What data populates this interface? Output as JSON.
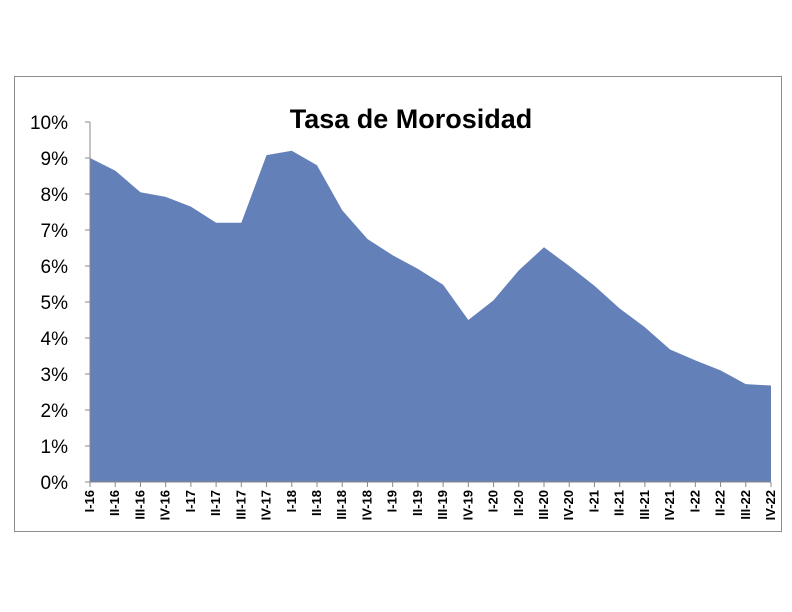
{
  "chart_data": {
    "type": "area",
    "title": "Tasa de Morosidad",
    "xlabel": "",
    "ylabel": "",
    "ylim": [
      0,
      10
    ],
    "y_tick_labels": [
      "0%",
      "1%",
      "2%",
      "3%",
      "4%",
      "5%",
      "6%",
      "7%",
      "8%",
      "9%",
      "10%"
    ],
    "categories": [
      "I-16",
      "II-16",
      "III-16",
      "IV-16",
      "I-17",
      "II-17",
      "III-17",
      "IV-17",
      "I-18",
      "II-18",
      "III-18",
      "IV-18",
      "I-19",
      "II-19",
      "III-19",
      "IV-19",
      "I-20",
      "II-20",
      "III-20",
      "IV-20",
      "I-21",
      "II-21",
      "III-21",
      "IV-21",
      "I-22",
      "II-22",
      "III-22",
      "IV-22"
    ],
    "series": [
      {
        "values": [
          9.0,
          8.65,
          8.05,
          7.92,
          7.65,
          7.2,
          7.2,
          9.08,
          9.2,
          8.8,
          7.55,
          6.75,
          6.3,
          5.92,
          5.48,
          4.5,
          5.05,
          5.88,
          6.52,
          6.0,
          5.45,
          4.82,
          4.3,
          3.68,
          3.38,
          3.1,
          2.72,
          2.68
        ],
        "color": "#6480b9"
      }
    ],
    "grid": false,
    "legend": "none"
  }
}
